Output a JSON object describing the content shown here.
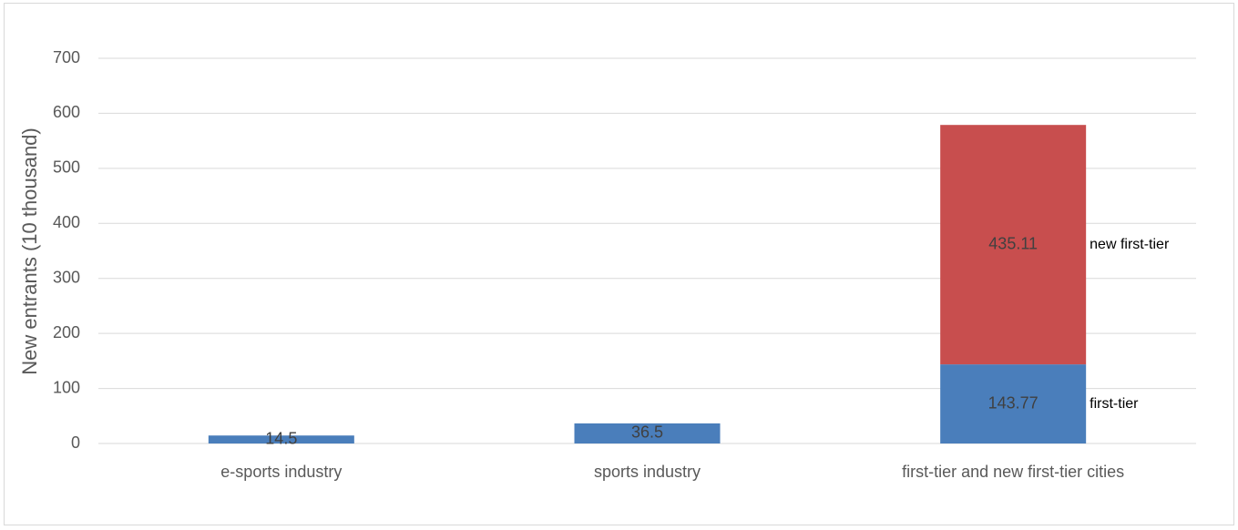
{
  "chart_data": {
    "type": "stacked-bar",
    "y_label": "New entrants (10 thousand)",
    "categories": [
      "e-sports industry",
      "sports industry",
      "first-tier and new first-tier cities"
    ],
    "series": [
      {
        "name": "first-tier",
        "color": "#4a7ebb",
        "values": [
          14.5,
          36.5,
          143.77
        ]
      },
      {
        "name": "new first-tier",
        "color": "#c84e4e",
        "values": [
          null,
          null,
          435.11
        ]
      }
    ],
    "ylim": [
      0,
      700
    ],
    "yticks": [
      0,
      100,
      200,
      300,
      400,
      500,
      600,
      700
    ],
    "grid": true
  }
}
